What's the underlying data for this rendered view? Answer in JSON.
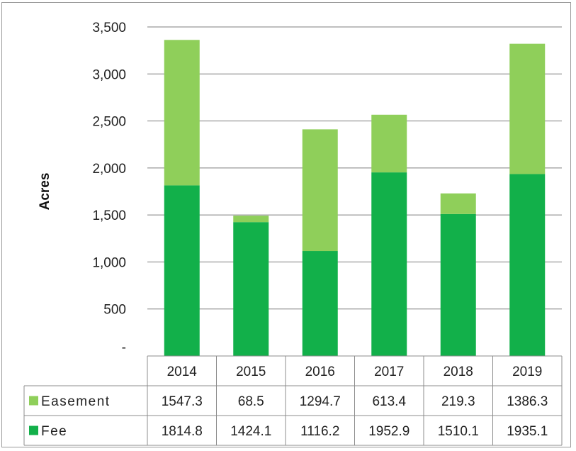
{
  "chart_data": {
    "type": "bar",
    "stacked": true,
    "title": "",
    "xlabel": "",
    "ylabel": "Acres",
    "categories": [
      "2014",
      "2015",
      "2016",
      "2017",
      "2018",
      "2019"
    ],
    "series": [
      {
        "name": "Fee",
        "color": "#12b04a",
        "values": [
          1814.8,
          1424.1,
          1116.2,
          1952.9,
          1510.1,
          1935.1
        ],
        "labels": [
          "1814.8",
          "1424.1",
          "1116.2",
          "1952.9",
          "1510.1",
          "1935.1"
        ]
      },
      {
        "name": "Easement",
        "color": "#8fcf5a",
        "values": [
          1547.3,
          68.5,
          1294.7,
          613.4,
          219.3,
          1386.3
        ],
        "labels": [
          "1547.3",
          "68.5",
          "1294.7",
          "613.4",
          "219.3",
          "1386.3"
        ]
      }
    ],
    "ylim": [
      0,
      3500
    ],
    "yticks": [
      0,
      500,
      1000,
      1500,
      2000,
      2500,
      3000,
      3500
    ],
    "ytick_labels": [
      "-",
      "500",
      "1,000",
      "1,500",
      "2,000",
      "2,500",
      "3,000",
      "3,500"
    ],
    "grid": true,
    "legend": "data-table"
  }
}
